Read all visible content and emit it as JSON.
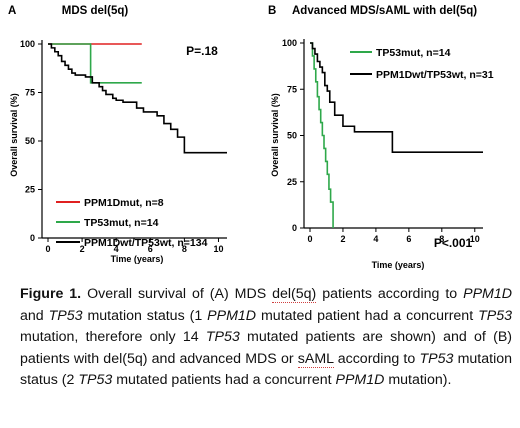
{
  "chart_data": [
    {
      "type": "line",
      "panel_letter": "A",
      "title": "MDS del(5q)",
      "xlabel": "Time (years)",
      "ylabel": "Overall survival (%)",
      "xlim": [
        0,
        10.5
      ],
      "ylim": [
        0,
        100
      ],
      "xticks": [
        0,
        2,
        4,
        6,
        8,
        10
      ],
      "yticks": [
        0,
        25,
        50,
        75,
        100
      ],
      "annotation": "P=.18",
      "legend_position": "bottom-left",
      "series": [
        {
          "name": "PPM1Dmut, n=8",
          "color": "#e02020",
          "x": [
            0,
            5.5
          ],
          "y": [
            100,
            100
          ]
        },
        {
          "name": "TP53mut, n=14",
          "color": "#2ea84a",
          "x": [
            0,
            2.5,
            2.5,
            5.5
          ],
          "y": [
            100,
            100,
            80,
            80
          ]
        },
        {
          "name": "PPM1Dwt/TP53wt, n=134",
          "color": "#000000",
          "x": [
            0,
            0.2,
            0.4,
            0.6,
            0.8,
            1.0,
            1.2,
            1.4,
            1.6,
            2.2,
            2.6,
            3.0,
            3.2,
            3.4,
            3.8,
            4.0,
            4.4,
            5.2,
            5.6,
            6.4,
            6.8,
            7.2,
            7.6,
            8.0,
            10.5
          ],
          "y": [
            100,
            98,
            96,
            94,
            91,
            89,
            87,
            85,
            84,
            83,
            80,
            78,
            76,
            74,
            72,
            71,
            70,
            67,
            65,
            63,
            59,
            56,
            52,
            44,
            44
          ]
        }
      ]
    },
    {
      "type": "line",
      "panel_letter": "B",
      "title": "Advanced MDS/sAML with del(5q)",
      "xlabel": "Time (years)",
      "ylabel": "Overall survival (%)",
      "xlim": [
        0,
        10.5
      ],
      "ylim": [
        0,
        100
      ],
      "xticks": [
        0,
        2,
        4,
        6,
        8,
        10
      ],
      "yticks": [
        0,
        25,
        50,
        75,
        100
      ],
      "annotation": "P<.001",
      "legend_position": "top-right",
      "series": [
        {
          "name": "TP53mut, n=14",
          "color": "#2ea84a",
          "x": [
            0,
            0.15,
            0.25,
            0.35,
            0.45,
            0.55,
            0.65,
            0.75,
            0.85,
            0.95,
            1.05,
            1.15,
            1.25,
            1.4
          ],
          "y": [
            100,
            93,
            86,
            79,
            71,
            64,
            57,
            50,
            43,
            36,
            29,
            21,
            14,
            0
          ]
        },
        {
          "name": "PPM1Dwt/TP53wt, n=31",
          "color": "#000000",
          "x": [
            0,
            0.15,
            0.3,
            0.45,
            0.6,
            0.75,
            0.9,
            1.05,
            1.2,
            1.5,
            2.0,
            2.7,
            5.0,
            10.5
          ],
          "y": [
            100,
            97,
            94,
            90,
            87,
            84,
            77,
            74,
            68,
            61,
            55,
            52,
            41,
            41
          ]
        }
      ]
    }
  ],
  "caption": {
    "figure_label": "Figure 1.",
    "segments": [
      {
        "t": " Overall survival of (A) MDS ",
        "s": ""
      },
      {
        "t": "del(5q)",
        "s": "u"
      },
      {
        "t": " patients according to ",
        "s": ""
      },
      {
        "t": "PPM1D",
        "s": "i"
      },
      {
        "t": " and ",
        "s": ""
      },
      {
        "t": "TP53",
        "s": "i"
      },
      {
        "t": " mutation status (1 ",
        "s": ""
      },
      {
        "t": "PPM1D",
        "s": "i"
      },
      {
        "t": " mutated patient had a concurrent ",
        "s": ""
      },
      {
        "t": "TP53",
        "s": "i"
      },
      {
        "t": " mutation, therefore only 14 ",
        "s": ""
      },
      {
        "t": "TP53",
        "s": "i"
      },
      {
        "t": " mutated patients are shown) and of (B) patients with del(5q) and advanced MDS or ",
        "s": ""
      },
      {
        "t": "sAML",
        "s": "u"
      },
      {
        "t": " according to ",
        "s": ""
      },
      {
        "t": "TP53",
        "s": "i"
      },
      {
        "t": " mutation status (2 ",
        "s": ""
      },
      {
        "t": "TP53",
        "s": "i"
      },
      {
        "t": " mutated patients had a concurrent ",
        "s": ""
      },
      {
        "t": "PPM1D",
        "s": "i"
      },
      {
        "t": " mutation).",
        "s": ""
      }
    ]
  }
}
